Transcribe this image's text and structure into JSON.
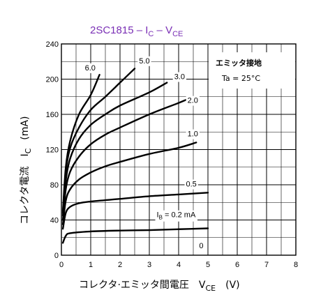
{
  "chart_data": {
    "type": "line",
    "title": {
      "part": "2SC1815",
      "formula_main": "I",
      "formula_sub": "C",
      "formula_sep": " – ",
      "formula_v": "V",
      "formula_vsub": "CE"
    },
    "title_color": "#7a2fb5",
    "ylabel": {
      "main": "コレクタ電流　I",
      "sub": "C",
      "unit": "(mA)"
    },
    "xlabel": {
      "main": "コレクタ·エミッタ間電圧　V",
      "sub": "CE",
      "unit": "(V)"
    },
    "annotation": {
      "line1": "エミッタ接地",
      "line2": "Ta = 25°C"
    },
    "xlim": [
      0,
      8
    ],
    "ylim": [
      0,
      240
    ],
    "x_ticks": [
      "0",
      "1",
      "2",
      "3",
      "4",
      "5",
      "6",
      "7",
      "8"
    ],
    "y_ticks": [
      "0",
      "40",
      "80",
      "120",
      "160",
      "200",
      "240"
    ],
    "grid": true,
    "series": [
      {
        "name": "0",
        "points": []
      },
      {
        "name": "I",
        "name_sub": "B",
        "name_rest": " = 0.2 mA",
        "points": [
          [
            0.05,
            14
          ],
          [
            0.15,
            22
          ],
          [
            0.3,
            25
          ],
          [
            1,
            27
          ],
          [
            2,
            28
          ],
          [
            3,
            28.5
          ],
          [
            4,
            29.5
          ],
          [
            5,
            30.5
          ]
        ]
      },
      {
        "name": "0.5",
        "points": [
          [
            0.05,
            30
          ],
          [
            0.15,
            48
          ],
          [
            0.3,
            55
          ],
          [
            0.6,
            59
          ],
          [
            1,
            61
          ],
          [
            2,
            64
          ],
          [
            3,
            67
          ],
          [
            4,
            69
          ],
          [
            5,
            71
          ]
        ]
      },
      {
        "name": "1.0",
        "points": [
          [
            0.05,
            35
          ],
          [
            0.15,
            62
          ],
          [
            0.3,
            75
          ],
          [
            0.6,
            86
          ],
          [
            1,
            94
          ],
          [
            1.5,
            101
          ],
          [
            2,
            106
          ],
          [
            3,
            115
          ],
          [
            4,
            122
          ],
          [
            4.6,
            128
          ]
        ]
      },
      {
        "name": "2.0",
        "points": [
          [
            0.05,
            40
          ],
          [
            0.15,
            75
          ],
          [
            0.3,
            95
          ],
          [
            0.6,
            112
          ],
          [
            1,
            126
          ],
          [
            1.5,
            137
          ],
          [
            2,
            145
          ],
          [
            3,
            160
          ],
          [
            4,
            173
          ],
          [
            4.5,
            180
          ]
        ]
      },
      {
        "name": "3.0",
        "points": [
          [
            0.05,
            45
          ],
          [
            0.15,
            85
          ],
          [
            0.3,
            110
          ],
          [
            0.6,
            132
          ],
          [
            1,
            148
          ],
          [
            1.5,
            160
          ],
          [
            2,
            170
          ],
          [
            3,
            185
          ],
          [
            3.6,
            196
          ]
        ]
      },
      {
        "name": "5.0",
        "points": [
          [
            0.05,
            48
          ],
          [
            0.15,
            95
          ],
          [
            0.3,
            122
          ],
          [
            0.6,
            145
          ],
          [
            1,
            165
          ],
          [
            1.5,
            180
          ],
          [
            2,
            196
          ],
          [
            2.5,
            212
          ]
        ]
      },
      {
        "name": "6.0",
        "points": [
          [
            0.05,
            50
          ],
          [
            0.15,
            100
          ],
          [
            0.3,
            130
          ],
          [
            0.6,
            160
          ],
          [
            1,
            182
          ],
          [
            1.3,
            205
          ]
        ]
      }
    ]
  }
}
